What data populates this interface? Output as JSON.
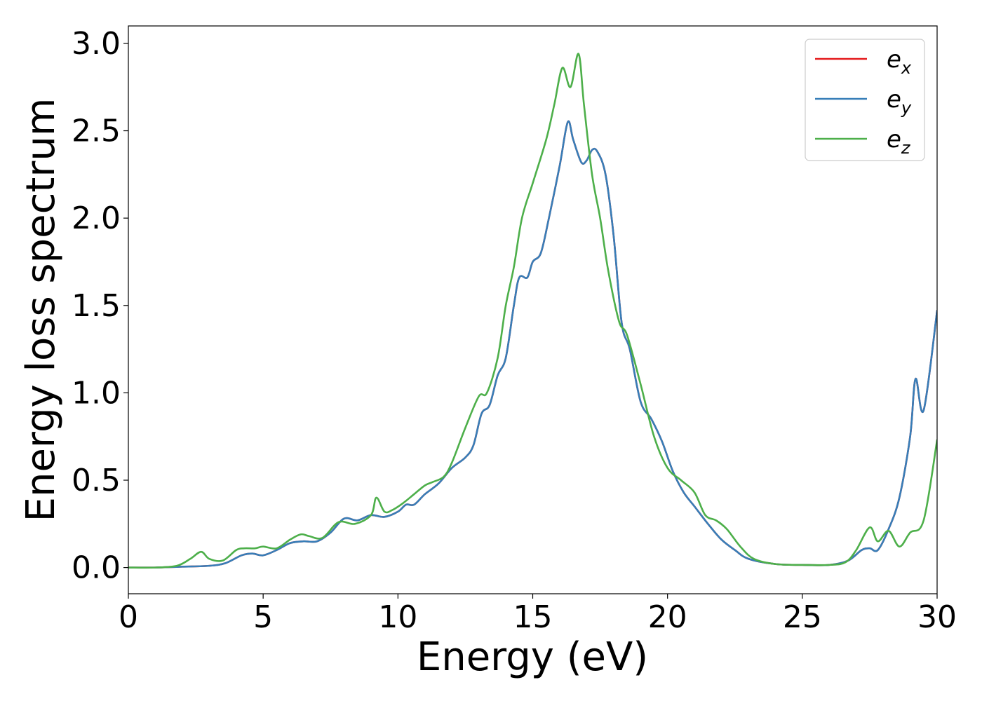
{
  "chart_data": {
    "type": "line",
    "title": "",
    "xlabel": "Energy (eV)",
    "ylabel": "Energy loss spectrum",
    "xlim": [
      0,
      30
    ],
    "ylim": [
      -0.15,
      3.1
    ],
    "xticks": [
      0,
      5,
      10,
      15,
      20,
      25,
      30
    ],
    "xtick_labels": [
      "0",
      "5",
      "10",
      "15",
      "20",
      "25",
      "30"
    ],
    "yticks": [
      0.0,
      0.5,
      1.0,
      1.5,
      2.0,
      2.5,
      3.0
    ],
    "ytick_labels": [
      "0.0",
      "0.5",
      "1.0",
      "1.5",
      "2.0",
      "2.5",
      "3.0"
    ],
    "grid": false,
    "legend_position": "top-right",
    "series": [
      {
        "name": "e_x",
        "legend_base": "e",
        "legend_sub": "x",
        "color": "#e41a1c",
        "x": [
          0,
          1,
          2,
          3,
          3.6,
          4.2,
          4.6,
          5,
          5.5,
          6,
          6.5,
          7,
          7.5,
          8,
          8.5,
          9,
          9.5,
          10,
          10.3,
          10.6,
          11,
          11.5,
          12,
          12.5,
          12.8,
          13.1,
          13.4,
          13.7,
          14,
          14.3,
          14.5,
          14.8,
          15,
          15.3,
          15.6,
          16,
          16.3,
          16.5,
          16.8,
          17,
          17.2,
          17.4,
          17.7,
          18,
          18.3,
          18.6,
          19,
          19.4,
          19.8,
          20.2,
          20.6,
          21,
          21.5,
          22,
          22.5,
          23,
          24,
          25,
          26,
          26.7,
          27.2,
          27.5,
          27.8,
          28.2,
          28.6,
          29,
          29.2,
          29.5,
          30
        ],
        "values": [
          0.0,
          0.0,
          0.005,
          0.01,
          0.025,
          0.07,
          0.08,
          0.07,
          0.1,
          0.14,
          0.15,
          0.15,
          0.2,
          0.28,
          0.27,
          0.3,
          0.29,
          0.32,
          0.36,
          0.36,
          0.42,
          0.48,
          0.57,
          0.63,
          0.7,
          0.88,
          0.93,
          1.1,
          1.2,
          1.5,
          1.66,
          1.66,
          1.75,
          1.8,
          2.0,
          2.3,
          2.55,
          2.45,
          2.32,
          2.33,
          2.39,
          2.38,
          2.25,
          1.9,
          1.4,
          1.25,
          0.95,
          0.85,
          0.72,
          0.55,
          0.43,
          0.35,
          0.25,
          0.16,
          0.1,
          0.05,
          0.02,
          0.015,
          0.015,
          0.04,
          0.1,
          0.11,
          0.1,
          0.22,
          0.4,
          0.75,
          1.08,
          0.9,
          1.47
        ]
      },
      {
        "name": "e_y",
        "legend_base": "e",
        "legend_sub": "y",
        "color": "#377eb8",
        "x": [
          0,
          1,
          2,
          3,
          3.6,
          4.2,
          4.6,
          5,
          5.5,
          6,
          6.5,
          7,
          7.5,
          8,
          8.5,
          9,
          9.5,
          10,
          10.3,
          10.6,
          11,
          11.5,
          12,
          12.5,
          12.8,
          13.1,
          13.4,
          13.7,
          14,
          14.3,
          14.5,
          14.8,
          15,
          15.3,
          15.6,
          16,
          16.3,
          16.5,
          16.8,
          17,
          17.2,
          17.4,
          17.7,
          18,
          18.3,
          18.6,
          19,
          19.4,
          19.8,
          20.2,
          20.6,
          21,
          21.5,
          22,
          22.5,
          23,
          24,
          25,
          26,
          26.7,
          27.2,
          27.5,
          27.8,
          28.2,
          28.6,
          29,
          29.2,
          29.5,
          30
        ],
        "values": [
          0.0,
          0.0,
          0.005,
          0.01,
          0.025,
          0.07,
          0.08,
          0.07,
          0.1,
          0.14,
          0.15,
          0.15,
          0.2,
          0.28,
          0.27,
          0.3,
          0.29,
          0.32,
          0.36,
          0.36,
          0.42,
          0.48,
          0.57,
          0.63,
          0.7,
          0.88,
          0.93,
          1.1,
          1.2,
          1.5,
          1.66,
          1.66,
          1.75,
          1.8,
          2.0,
          2.3,
          2.55,
          2.45,
          2.32,
          2.33,
          2.39,
          2.38,
          2.25,
          1.9,
          1.4,
          1.25,
          0.95,
          0.85,
          0.72,
          0.55,
          0.43,
          0.35,
          0.25,
          0.16,
          0.1,
          0.05,
          0.02,
          0.015,
          0.015,
          0.04,
          0.1,
          0.11,
          0.1,
          0.22,
          0.4,
          0.75,
          1.08,
          0.9,
          1.47
        ]
      },
      {
        "name": "e_z",
        "legend_base": "e",
        "legend_sub": "z",
        "color": "#4daf4a",
        "x": [
          0,
          1,
          1.8,
          2.3,
          2.7,
          3.0,
          3.5,
          4.0,
          4.3,
          4.7,
          5.0,
          5.5,
          6.0,
          6.4,
          6.7,
          7.2,
          7.8,
          8.4,
          9.0,
          9.2,
          9.5,
          9.8,
          10.2,
          10.6,
          11.0,
          11.3,
          11.7,
          12.0,
          12.5,
          13.0,
          13.3,
          13.7,
          14.0,
          14.3,
          14.6,
          15.0,
          15.5,
          15.8,
          16.1,
          16.4,
          16.7,
          16.9,
          17.2,
          17.5,
          17.8,
          18.2,
          18.5,
          19.0,
          19.5,
          20.0,
          20.5,
          21.0,
          21.4,
          21.8,
          22.2,
          22.7,
          23.2,
          24,
          25,
          26,
          26.6,
          27.0,
          27.5,
          27.8,
          28.2,
          28.6,
          29.0,
          29.5,
          30
        ],
        "values": [
          0.0,
          0.0,
          0.01,
          0.05,
          0.09,
          0.05,
          0.04,
          0.1,
          0.11,
          0.11,
          0.12,
          0.11,
          0.16,
          0.19,
          0.18,
          0.17,
          0.26,
          0.25,
          0.3,
          0.4,
          0.32,
          0.33,
          0.37,
          0.42,
          0.47,
          0.49,
          0.52,
          0.6,
          0.8,
          0.98,
          1.0,
          1.2,
          1.5,
          1.72,
          2.0,
          2.2,
          2.45,
          2.65,
          2.86,
          2.75,
          2.94,
          2.65,
          2.25,
          2.0,
          1.7,
          1.41,
          1.33,
          1.05,
          0.75,
          0.57,
          0.5,
          0.43,
          0.3,
          0.27,
          0.22,
          0.12,
          0.05,
          0.02,
          0.015,
          0.015,
          0.03,
          0.1,
          0.23,
          0.15,
          0.21,
          0.12,
          0.2,
          0.27,
          0.73
        ]
      }
    ]
  }
}
